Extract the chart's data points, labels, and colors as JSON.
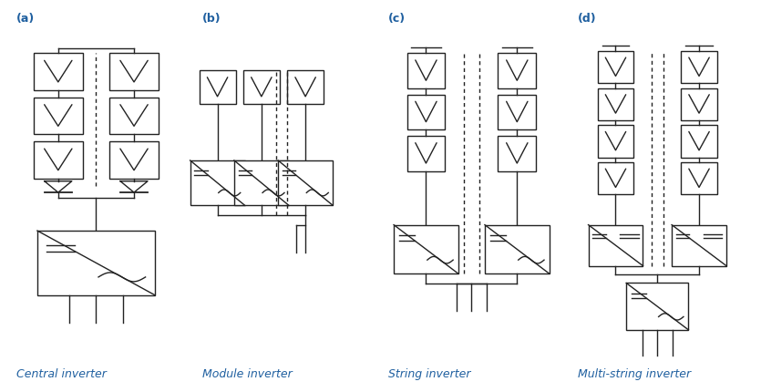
{
  "title_color": "#2060a0",
  "label_color": "#2060a0",
  "line_color": "#222222",
  "bg_color": "#ffffff",
  "fig_width": 8.35,
  "fig_height": 4.31,
  "dpi": 100,
  "labels": {
    "a": "(a)",
    "b": "(b)",
    "c": "(c)",
    "d": "(d)",
    "central": "Central inverter",
    "module": "Module inverter",
    "string": "String inverter",
    "multistring": "Multi-string inverter"
  },
  "label_fontsize": 9,
  "title_fontsize": 9,
  "lw": 1.0
}
